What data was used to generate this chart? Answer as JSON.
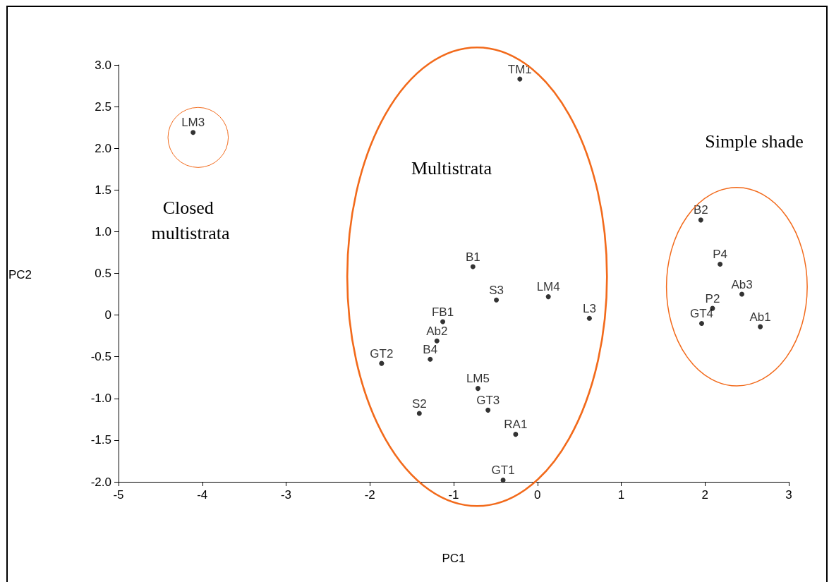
{
  "chart_data": {
    "type": "scatter",
    "xlabel": "PC1",
    "ylabel": "PC2",
    "marker": "circle",
    "grid": false,
    "xlim": [
      -5,
      3
    ],
    "xticks": [
      -5,
      -4,
      -3,
      -2,
      -1,
      0,
      1,
      2,
      3
    ],
    "ylim": [
      -2,
      3
    ],
    "yticks": [
      {
        "value": -2,
        "label": "-2.0"
      },
      {
        "value": -1.5,
        "label": "-1.5"
      },
      {
        "value": -1,
        "label": "-1.0"
      },
      {
        "value": -0.5,
        "label": "-0.5"
      },
      0,
      {
        "value": 0.5,
        "label": "0.5"
      },
      {
        "value": 1,
        "label": "1.0"
      },
      {
        "value": 1.5,
        "label": "1.5"
      },
      {
        "value": 2,
        "label": "2.0"
      },
      {
        "value": 2.5,
        "label": "2.5"
      },
      {
        "value": 3,
        "label": "3.0"
      }
    ],
    "series": [
      {
        "color": "#000000",
        "x": [
          -0.21,
          -4.11,
          -0.77,
          -0.49,
          0.13,
          0.62,
          -1.13,
          -1.2,
          -1.28,
          -1.86,
          -0.71,
          -1.41,
          -0.59,
          -0.26,
          -0.41,
          1.95,
          2.18,
          2.44,
          2.09,
          1.96,
          2.66
        ],
        "values": [
          2.83,
          2.19,
          0.58,
          0.18,
          0.22,
          -0.04,
          -0.08,
          -0.31,
          -0.53,
          -0.58,
          -0.88,
          -1.18,
          -1.14,
          -1.43,
          -1.98,
          1.14,
          0.61,
          0.25,
          0.08,
          -0.1,
          -0.14
        ],
        "value_labels": [
          "TM1",
          "LM3",
          "B1",
          "S3",
          "LM4",
          "L3",
          "FB1",
          "Ab2",
          "B4",
          "GT2",
          "LM5",
          "S2",
          "GT3",
          "RA1",
          "GT1",
          "B2",
          "P4",
          "Ab3",
          "P2",
          "GT4",
          "Ab1"
        ]
      }
    ],
    "annotations": [
      "Closed multistrata",
      "Multistrata",
      "Simple shade"
    ]
  }
}
